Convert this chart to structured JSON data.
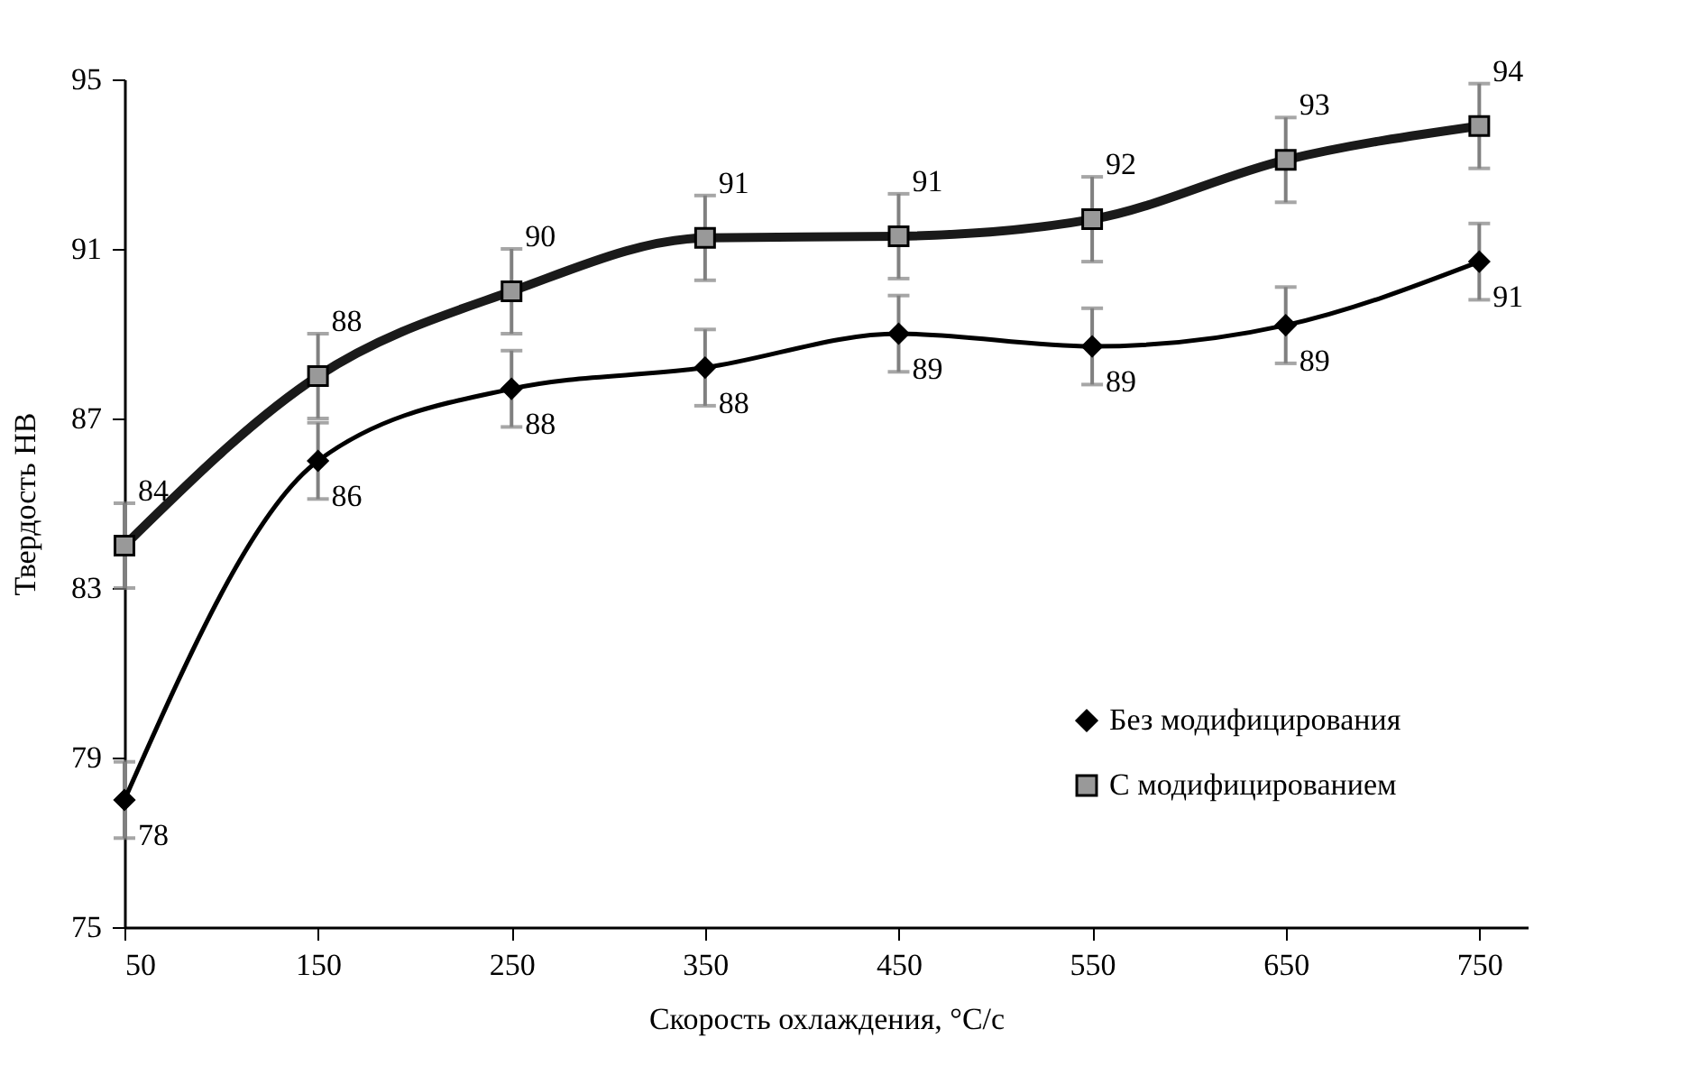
{
  "chart_data": {
    "type": "line",
    "xlabel": "Скорость охлаждения, °C/с",
    "ylabel": "Твердость HB",
    "x": [
      50,
      150,
      250,
      350,
      450,
      550,
      650,
      750
    ],
    "xlim": [
      50,
      775
    ],
    "xticks": [
      50,
      150,
      250,
      350,
      450,
      550,
      650,
      750
    ],
    "ylim": [
      75,
      95
    ],
    "yticks": [
      75,
      79,
      83,
      87,
      91,
      95
    ],
    "legend": "bottom right",
    "grid": false,
    "line_style": "solid",
    "series": [
      {
        "name": "Без модифицирования",
        "color": "#000000",
        "marker": "diamond",
        "values": [
          78.0,
          86.0,
          87.7,
          88.2,
          89.0,
          88.7,
          89.2,
          90.7
        ],
        "errors": [
          0.9,
          0.9,
          0.9,
          0.9,
          0.9,
          0.9,
          0.9,
          0.9
        ],
        "value_labels": [
          "78",
          "86",
          "88",
          "88",
          "89",
          "89",
          "89",
          "91"
        ]
      },
      {
        "name": "С модифицированием",
        "color": "#1a1a1a",
        "marker": "square",
        "values": [
          84.0,
          88.0,
          90.0,
          91.26,
          91.3,
          91.7,
          93.1,
          93.9
        ],
        "errors": [
          1,
          1,
          1,
          1,
          1,
          1,
          1,
          1
        ],
        "value_labels": [
          "84",
          "88",
          "90",
          "91",
          "91",
          "92",
          "93",
          "94"
        ]
      }
    ]
  }
}
